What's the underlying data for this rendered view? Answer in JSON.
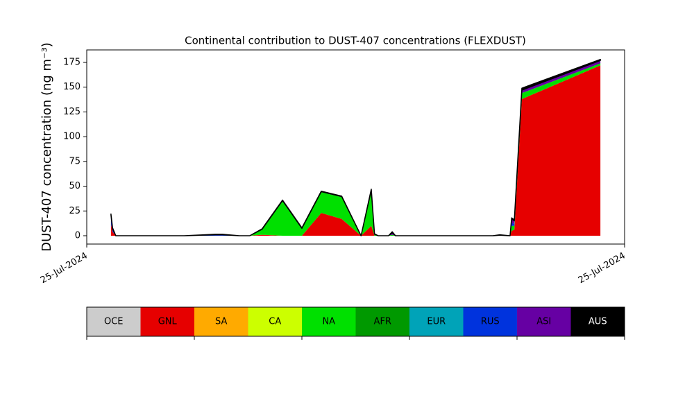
{
  "chart_data": {
    "type": "stacked_area",
    "title": "Continental contribution to DUST-407 concentrations (FLEXDUST)",
    "y_label": "DUST-407 concentration (ng m⁻³)",
    "x": [
      0.045,
      0.048,
      0.054,
      0.181,
      0.239,
      0.252,
      0.284,
      0.303,
      0.326,
      0.364,
      0.4,
      0.436,
      0.474,
      0.51,
      0.529,
      0.535,
      0.542,
      0.561,
      0.568,
      0.574,
      0.755,
      0.768,
      0.787,
      0.79,
      0.795,
      0.809,
      0.955
    ],
    "xlim": [
      0,
      1
    ],
    "xticks": [
      {
        "value": 0,
        "label": "25-Jul-2024"
      },
      {
        "value": 1,
        "label": "25-Jul-2024"
      }
    ],
    "ylim": [
      -8.4,
      187.6
    ],
    "yticks": [
      0,
      25,
      50,
      75,
      100,
      125,
      150,
      175
    ],
    "outline_color": "#000000",
    "series": [
      {
        "name": "OCE",
        "color": "#cccccc",
        "values": [
          0,
          0,
          0,
          0,
          0,
          0,
          0,
          0,
          0,
          0,
          0,
          0,
          0,
          0,
          0,
          0,
          0,
          0,
          0,
          0,
          0,
          0,
          0,
          0,
          0,
          0,
          0
        ]
      },
      {
        "name": "GNL",
        "color": "#e60000",
        "values": [
          12,
          4,
          0,
          0,
          0,
          0,
          0,
          0,
          1,
          0,
          0,
          23,
          17,
          0,
          10,
          0,
          0,
          0,
          0,
          0,
          0,
          0,
          0,
          5,
          6,
          138,
          172
        ]
      },
      {
        "name": "SA",
        "color": "#ffaa00",
        "values": [
          0,
          0,
          0,
          0,
          0,
          0,
          0,
          0,
          0,
          0,
          0,
          0,
          0,
          0,
          0,
          0,
          0,
          0,
          0,
          0,
          0,
          0,
          0,
          0,
          0,
          0,
          0
        ]
      },
      {
        "name": "CA",
        "color": "#ccff00",
        "values": [
          0,
          0,
          0,
          0,
          0,
          0,
          0,
          0,
          0,
          0,
          0,
          0,
          0,
          0,
          0,
          0,
          0,
          0,
          0,
          0,
          0,
          0,
          0,
          0,
          0,
          0,
          0
        ]
      },
      {
        "name": "NA",
        "color": "#00e000",
        "values": [
          0,
          0,
          0,
          0,
          0,
          0,
          0,
          0,
          5,
          35,
          7,
          21,
          22,
          0,
          35,
          1,
          0,
          0,
          1,
          0,
          0,
          0,
          0,
          5,
          4,
          6,
          2
        ]
      },
      {
        "name": "AFR",
        "color": "#009900",
        "values": [
          0,
          0,
          0,
          0,
          0,
          0,
          0,
          0,
          0,
          0,
          0,
          0,
          0,
          0,
          0,
          0,
          0,
          0,
          0,
          0,
          0,
          0,
          0,
          0,
          0,
          0,
          0
        ]
      },
      {
        "name": "EUR",
        "color": "#00a3b8",
        "values": [
          0,
          0,
          0,
          0,
          0,
          0,
          0,
          0,
          0,
          0,
          0,
          0,
          0,
          0,
          0,
          0,
          0,
          0,
          0,
          0,
          0,
          0,
          0,
          0,
          0,
          0,
          0
        ]
      },
      {
        "name": "RUS",
        "color": "#0033dd",
        "values": [
          6,
          2,
          0,
          0,
          0.5,
          0.5,
          0,
          0,
          0,
          0,
          0,
          0,
          0,
          0,
          0,
          0,
          0,
          0,
          0,
          0,
          0,
          0,
          0,
          3,
          2,
          0,
          0
        ]
      },
      {
        "name": "ASI",
        "color": "#6600a3",
        "values": [
          3,
          1,
          0,
          0,
          0.5,
          0.5,
          0,
          0,
          0.5,
          0.5,
          0.5,
          0.5,
          0.5,
          0,
          1,
          0.5,
          0,
          0,
          2,
          0,
          0,
          0.5,
          0,
          4,
          3,
          3,
          3
        ]
      },
      {
        "name": "AUS",
        "color": "#000000",
        "values": [
          1,
          1,
          0,
          0,
          0.5,
          0.5,
          0,
          0,
          0.5,
          0.5,
          0.5,
          0.5,
          0.5,
          0,
          1,
          0.5,
          0,
          0,
          1,
          0,
          0,
          0.5,
          0,
          1,
          1,
          2,
          1
        ]
      }
    ]
  }
}
